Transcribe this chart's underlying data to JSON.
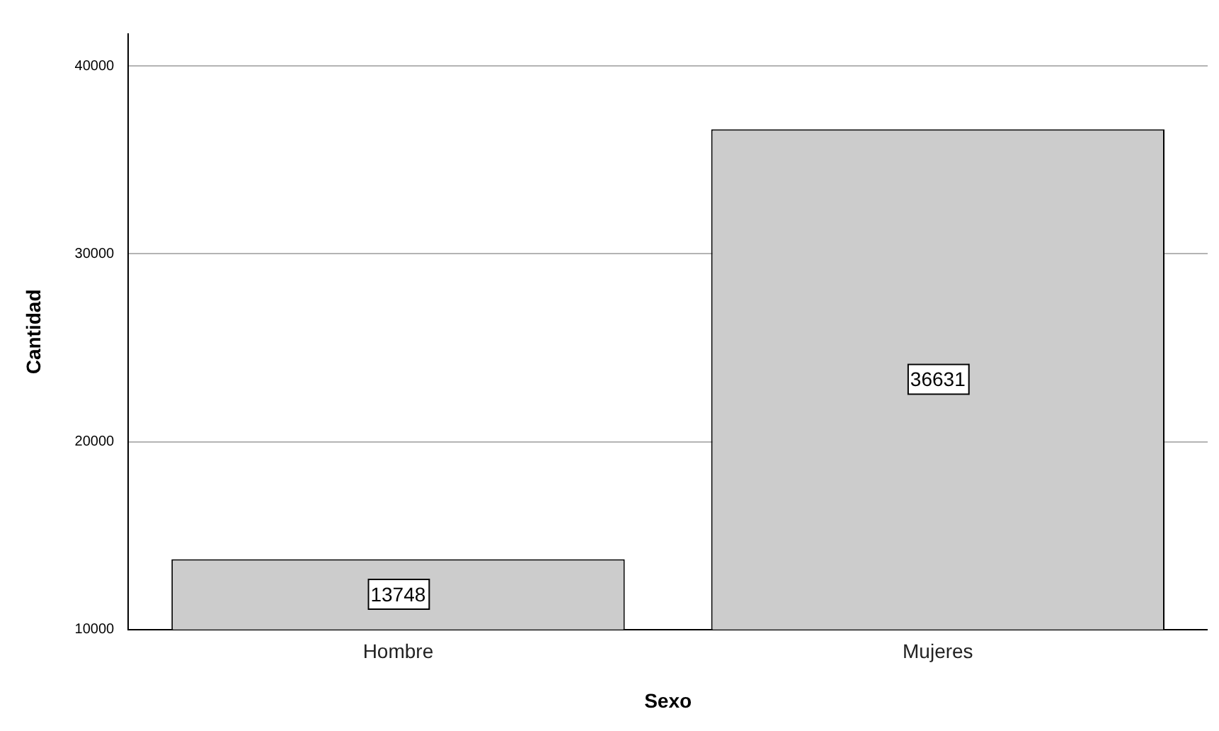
{
  "chart_data": {
    "type": "bar",
    "xlabel": "Sexo",
    "ylabel": "Cantidad",
    "categories": [
      "Hombre",
      "Mujeres"
    ],
    "values": [
      13748,
      36631
    ],
    "color": "#cccccc",
    "ylim": [
      10000,
      41700
    ],
    "yticks": [
      10000,
      20000,
      30000,
      40000
    ],
    "grid": "y",
    "data_labels": true,
    "legend": false
  }
}
